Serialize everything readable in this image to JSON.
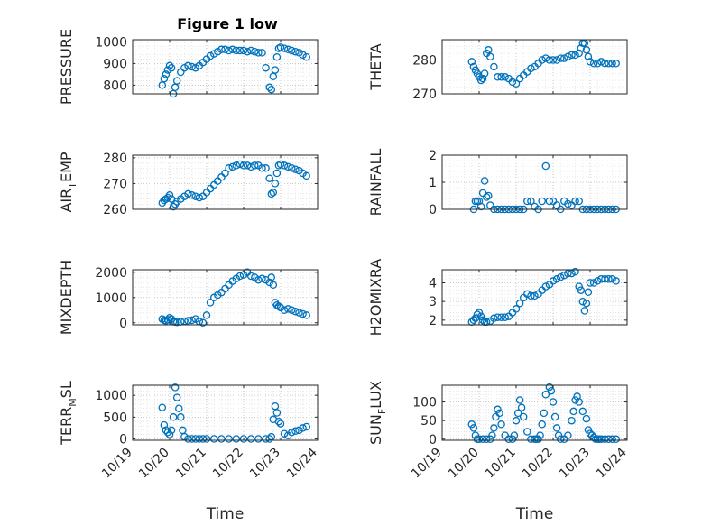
{
  "figure": {
    "title": "Figure 1 low",
    "marker_color": "#0072BD"
  },
  "chart_data": [
    {
      "type": "scatter",
      "ylabel": "PRESSURE",
      "ylim": [
        760,
        1010
      ],
      "yticks": [
        800,
        900,
        1000
      ],
      "x": [
        19.8,
        19.85,
        19.9,
        19.95,
        20.0,
        20.05,
        20.1,
        20.15,
        20.2,
        20.3,
        20.4,
        20.5,
        20.6,
        20.7,
        20.8,
        20.9,
        21.0,
        21.1,
        21.2,
        21.3,
        21.4,
        21.5,
        21.6,
        21.7,
        21.8,
        21.9,
        22.0,
        22.1,
        22.2,
        22.3,
        22.4,
        22.5,
        22.6,
        22.7,
        22.75,
        22.8,
        22.85,
        22.9,
        22.95,
        23.0,
        23.1,
        23.2,
        23.3,
        23.4,
        23.5,
        23.6,
        23.7
      ],
      "y": [
        800,
        830,
        850,
        870,
        890,
        880,
        760,
        790,
        820,
        860,
        880,
        890,
        885,
        880,
        890,
        905,
        920,
        935,
        945,
        955,
        965,
        965,
        960,
        965,
        960,
        960,
        960,
        955,
        960,
        955,
        950,
        950,
        880,
        790,
        780,
        840,
        870,
        930,
        970,
        975,
        970,
        965,
        960,
        955,
        950,
        940,
        930
      ]
    },
    {
      "type": "scatter",
      "ylabel": "THETA",
      "ylim": [
        270,
        286
      ],
      "yticks": [
        270,
        280
      ],
      "x": [
        19.8,
        19.85,
        19.9,
        19.95,
        20.0,
        20.05,
        20.1,
        20.15,
        20.2,
        20.25,
        20.3,
        20.4,
        20.5,
        20.6,
        20.7,
        20.8,
        20.9,
        21.0,
        21.1,
        21.2,
        21.3,
        21.4,
        21.5,
        21.6,
        21.7,
        21.8,
        21.9,
        22.0,
        22.1,
        22.2,
        22.3,
        22.4,
        22.5,
        22.6,
        22.7,
        22.75,
        22.8,
        22.85,
        22.9,
        22.95,
        23.0,
        23.1,
        23.2,
        23.3,
        23.4,
        23.5,
        23.6,
        23.7
      ],
      "y": [
        279.5,
        278,
        277,
        276,
        275,
        274,
        274.5,
        276,
        282,
        283,
        281,
        278,
        275,
        275,
        275,
        274.5,
        273.5,
        273,
        274.5,
        275.5,
        276.5,
        277.5,
        278,
        279,
        280,
        280.5,
        280,
        280,
        280,
        280.5,
        280.5,
        281,
        281.5,
        281.5,
        282,
        283.5,
        285,
        285,
        283,
        281,
        279.5,
        279,
        279,
        279.5,
        279,
        279,
        279,
        279
      ]
    },
    {
      "type": "scatter",
      "ylabel": "AIR",
      "ylabel_sub": "T",
      "ylabel_tail": "EMP",
      "ylim": [
        260,
        281
      ],
      "yticks": [
        260,
        270,
        280
      ],
      "x": [
        19.8,
        19.85,
        19.9,
        19.95,
        20.0,
        20.05,
        20.1,
        20.15,
        20.2,
        20.3,
        20.4,
        20.5,
        20.6,
        20.7,
        20.8,
        20.9,
        21.0,
        21.1,
        21.2,
        21.3,
        21.4,
        21.5,
        21.6,
        21.7,
        21.8,
        21.9,
        22.0,
        22.1,
        22.2,
        22.3,
        22.4,
        22.5,
        22.6,
        22.7,
        22.75,
        22.8,
        22.85,
        22.9,
        22.95,
        23.0,
        23.1,
        23.2,
        23.3,
        23.4,
        23.5,
        23.6,
        23.7
      ],
      "y": [
        262.5,
        263.5,
        264,
        264.5,
        265.5,
        264,
        261,
        262,
        263,
        264,
        265,
        266,
        265.5,
        265,
        264.5,
        265,
        266.5,
        268,
        269.5,
        271,
        272.5,
        274,
        276,
        276.5,
        277,
        277.5,
        277,
        277,
        276.5,
        277,
        277,
        276,
        276,
        272,
        266,
        266.5,
        270,
        274,
        277,
        277.5,
        277,
        276.5,
        276,
        275.5,
        275,
        274,
        273
      ]
    },
    {
      "type": "scatter",
      "ylabel": "RAINFALL",
      "ylim": [
        0,
        2
      ],
      "yticks": [
        0,
        1,
        2
      ],
      "x": [
        19.85,
        19.9,
        19.95,
        20.0,
        20.05,
        20.1,
        20.15,
        20.2,
        20.25,
        20.3,
        20.4,
        20.5,
        20.6,
        20.7,
        20.8,
        20.9,
        21.0,
        21.1,
        21.2,
        21.3,
        21.4,
        21.5,
        21.6,
        21.7,
        21.8,
        21.9,
        22.0,
        22.1,
        22.2,
        22.3,
        22.4,
        22.5,
        22.6,
        22.7,
        22.8,
        22.9,
        23.0,
        23.1,
        23.2,
        23.3,
        23.4,
        23.5,
        23.6,
        23.7
      ],
      "y": [
        0,
        0.3,
        0.3,
        0.3,
        0.1,
        0.6,
        1.05,
        0.45,
        0.5,
        0.15,
        0,
        0,
        0,
        0,
        0,
        0,
        0,
        0,
        0,
        0.3,
        0.3,
        0.1,
        0,
        0.3,
        1.6,
        0.3,
        0.3,
        0.15,
        0,
        0.3,
        0.2,
        0.15,
        0.3,
        0.3,
        0,
        0,
        0,
        0,
        0,
        0,
        0,
        0,
        0,
        0
      ]
    },
    {
      "type": "scatter",
      "ylabel": "MIXDEPTH",
      "ylim": [
        -80,
        2100
      ],
      "yticks": [
        0,
        1000,
        2000
      ],
      "x": [
        19.8,
        19.85,
        19.9,
        19.95,
        20.0,
        20.05,
        20.1,
        20.15,
        20.2,
        20.3,
        20.4,
        20.5,
        20.6,
        20.7,
        20.8,
        20.9,
        21.0,
        21.1,
        21.2,
        21.3,
        21.4,
        21.5,
        21.6,
        21.7,
        21.8,
        21.9,
        22.0,
        22.1,
        22.2,
        22.3,
        22.4,
        22.5,
        22.6,
        22.7,
        22.75,
        22.8,
        22.85,
        22.9,
        22.95,
        23.0,
        23.1,
        23.2,
        23.3,
        23.4,
        23.5,
        23.6,
        23.7
      ],
      "y": [
        150,
        100,
        80,
        120,
        200,
        150,
        50,
        30,
        20,
        40,
        60,
        80,
        100,
        150,
        50,
        0,
        300,
        800,
        1000,
        1100,
        1200,
        1350,
        1500,
        1650,
        1750,
        1850,
        1900,
        2000,
        1850,
        1800,
        1700,
        1750,
        1700,
        1600,
        1800,
        1500,
        800,
        700,
        650,
        600,
        500,
        550,
        500,
        450,
        400,
        350,
        300
      ]
    },
    {
      "type": "scatter",
      "ylabel": "H2OMIXRA",
      "ylim": [
        1.75,
        4.7
      ],
      "yticks": [
        2,
        3,
        4
      ],
      "x": [
        19.8,
        19.85,
        19.9,
        19.95,
        20.0,
        20.05,
        20.1,
        20.15,
        20.2,
        20.3,
        20.4,
        20.5,
        20.6,
        20.7,
        20.8,
        20.9,
        21.0,
        21.1,
        21.2,
        21.3,
        21.4,
        21.5,
        21.6,
        21.7,
        21.8,
        21.9,
        22.0,
        22.1,
        22.2,
        22.3,
        22.4,
        22.5,
        22.6,
        22.7,
        22.75,
        22.8,
        22.85,
        22.9,
        22.95,
        23.0,
        23.1,
        23.2,
        23.3,
        23.4,
        23.5,
        23.6,
        23.7
      ],
      "y": [
        1.9,
        2.0,
        2.1,
        2.3,
        2.4,
        2.2,
        2.0,
        1.9,
        1.9,
        1.95,
        2.1,
        2.15,
        2.15,
        2.15,
        2.2,
        2.4,
        2.6,
        2.9,
        3.2,
        3.4,
        3.3,
        3.3,
        3.4,
        3.6,
        3.8,
        3.9,
        4.1,
        4.2,
        4.3,
        4.4,
        4.5,
        4.5,
        4.6,
        3.8,
        3.6,
        3.0,
        2.5,
        2.9,
        3.5,
        4.0,
        4.0,
        4.1,
        4.2,
        4.2,
        4.2,
        4.2,
        4.1
      ]
    },
    {
      "type": "scatter",
      "ylabel": "TERR",
      "ylabel_sub": "M",
      "ylabel_tail": "SL",
      "ylim": [
        -30,
        1230
      ],
      "yticks": [
        0,
        500,
        1000
      ],
      "x": [
        19.8,
        19.85,
        19.9,
        19.95,
        20.0,
        20.05,
        20.1,
        20.15,
        20.2,
        20.25,
        20.3,
        20.35,
        20.4,
        20.5,
        20.6,
        20.7,
        20.8,
        20.9,
        21.0,
        21.2,
        21.4,
        21.6,
        21.8,
        22.0,
        22.2,
        22.4,
        22.6,
        22.7,
        22.75,
        22.8,
        22.85,
        22.9,
        22.95,
        23.0,
        23.1,
        23.2,
        23.3,
        23.4,
        23.5,
        23.6,
        23.7
      ],
      "y": [
        720,
        320,
        200,
        150,
        100,
        200,
        500,
        1180,
        950,
        700,
        500,
        200,
        50,
        0,
        0,
        0,
        0,
        0,
        0,
        0,
        0,
        0,
        0,
        0,
        0,
        0,
        0,
        0,
        50,
        450,
        750,
        600,
        400,
        350,
        120,
        80,
        150,
        180,
        200,
        250,
        280
      ]
    },
    {
      "type": "scatter",
      "ylabel": "SUN",
      "ylabel_sub": "F",
      "ylabel_tail": "LUX",
      "ylim": [
        -3,
        145
      ],
      "yticks": [
        0,
        50,
        100
      ],
      "x": [
        19.8,
        19.85,
        19.9,
        19.95,
        20.0,
        20.1,
        20.2,
        20.3,
        20.35,
        20.4,
        20.45,
        20.5,
        20.55,
        20.6,
        20.7,
        20.8,
        20.9,
        20.95,
        21.0,
        21.05,
        21.1,
        21.15,
        21.2,
        21.3,
        21.4,
        21.5,
        21.55,
        21.6,
        21.65,
        21.7,
        21.75,
        21.8,
        21.9,
        21.95,
        22.0,
        22.05,
        22.1,
        22.15,
        22.2,
        22.3,
        22.4,
        22.5,
        22.55,
        22.6,
        22.65,
        22.7,
        22.8,
        22.9,
        22.95,
        23.0,
        23.05,
        23.1,
        23.15,
        23.2,
        23.25,
        23.3,
        23.4,
        23.5,
        23.6,
        23.7
      ],
      "y": [
        40,
        30,
        10,
        0,
        0,
        0,
        0,
        0,
        10,
        30,
        60,
        80,
        70,
        40,
        10,
        0,
        0,
        10,
        50,
        70,
        105,
        85,
        60,
        20,
        0,
        0,
        0,
        0,
        10,
        40,
        70,
        120,
        140,
        130,
        100,
        60,
        30,
        10,
        0,
        0,
        10,
        50,
        75,
        105,
        115,
        100,
        75,
        55,
        25,
        15,
        10,
        5,
        0,
        0,
        0,
        0,
        0,
        0,
        0,
        0
      ]
    }
  ],
  "axes": {
    "xlim": [
      19,
      24
    ],
    "xtick_labels": [
      "10/19",
      "10/20",
      "10/21",
      "10/22",
      "10/23",
      "10/24"
    ],
    "xlabel": "Time"
  }
}
